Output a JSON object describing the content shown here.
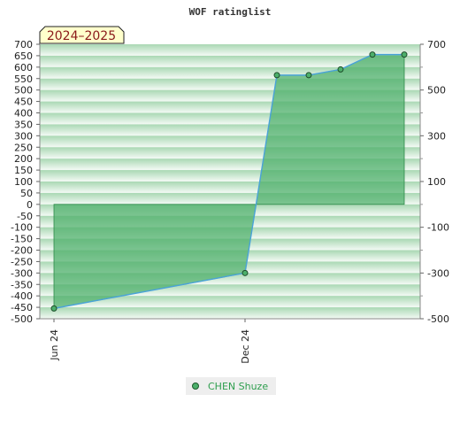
{
  "chart_data": {
    "type": "area",
    "title": "WOF ratinglist",
    "season_label": "2024–2025",
    "x_tick_labels": [
      "Jun 24",
      "Dec 24"
    ],
    "series": [
      {
        "name": "CHEN Shuze",
        "x": [
          "2024-06",
          "2024-12",
          "2025-01",
          "2025-02",
          "2025-03",
          "2025-04",
          "2025-05"
        ],
        "values": [
          -455,
          -300,
          565,
          565,
          590,
          655,
          655
        ]
      }
    ],
    "y_left_ticks": [
      700,
      650,
      600,
      550,
      500,
      450,
      400,
      350,
      300,
      250,
      200,
      150,
      100,
      50,
      0,
      -50,
      -100,
      -150,
      -200,
      -250,
      -300,
      -350,
      -400,
      -450,
      -500
    ],
    "y_right_ticks": [
      700,
      500,
      300,
      100,
      -100,
      -300,
      -500
    ],
    "ylim": [
      -500,
      700
    ],
    "grid": "horizontal bands",
    "legend_position": "bottom-center",
    "colors": {
      "fill": "#4caf6a",
      "line": "#4aa3d8",
      "marker": "#4caf6a",
      "band_dark": "#a9d8b3",
      "band_light": "#f4faf5",
      "badge_bg": "#ffffcc",
      "legend_text": "#2e9e4e"
    }
  }
}
